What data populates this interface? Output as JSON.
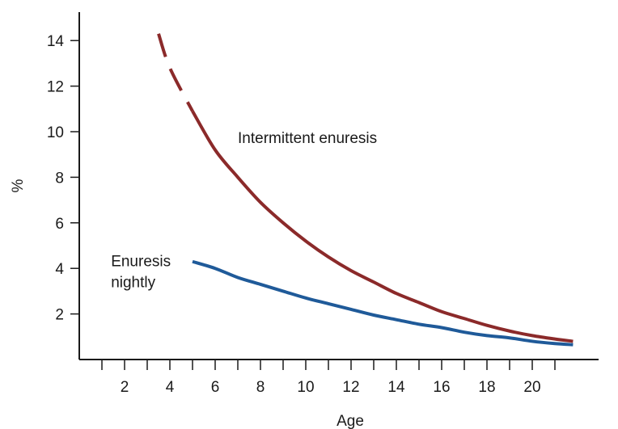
{
  "chart_data": {
    "type": "line",
    "xlabel": "Age",
    "ylabel": "%",
    "xlim": [
      0,
      22
    ],
    "ylim": [
      0,
      15
    ],
    "xticks_minor": [
      1,
      2,
      3,
      4,
      5,
      6,
      7,
      8,
      9,
      10,
      11,
      12,
      13,
      14,
      15,
      16,
      17,
      18,
      19,
      20,
      21
    ],
    "xtick_labels": [
      2,
      4,
      6,
      8,
      10,
      12,
      14,
      16,
      18,
      20
    ],
    "ytick_labels": [
      2,
      4,
      6,
      8,
      10,
      12,
      14
    ],
    "grid": false,
    "series": [
      {
        "name": "Intermittent enuresis",
        "color": "#8b2a2a",
        "dashed_segment_x": [
          3.5,
          5.0
        ],
        "x": [
          3.5,
          4.0,
          5.0,
          6.0,
          7.0,
          8.0,
          9.0,
          10.0,
          11.0,
          12.0,
          13.0,
          14.0,
          15.0,
          16.0,
          17.0,
          18.0,
          19.0,
          20.0,
          21.0,
          21.8
        ],
        "y": [
          14.3,
          12.8,
          10.9,
          9.2,
          8.0,
          6.9,
          6.0,
          5.2,
          4.5,
          3.9,
          3.4,
          2.9,
          2.5,
          2.1,
          1.8,
          1.5,
          1.25,
          1.05,
          0.9,
          0.8
        ]
      },
      {
        "name": "Enuresis nightly",
        "color": "#1f5a99",
        "x": [
          5.0,
          6.0,
          7.0,
          8.0,
          9.0,
          10.0,
          11.0,
          12.0,
          13.0,
          14.0,
          15.0,
          16.0,
          17.0,
          18.0,
          19.0,
          20.0,
          21.0,
          21.8
        ],
        "y": [
          4.3,
          4.0,
          3.6,
          3.3,
          3.0,
          2.7,
          2.45,
          2.2,
          1.95,
          1.75,
          1.55,
          1.4,
          1.2,
          1.05,
          0.95,
          0.8,
          0.7,
          0.65
        ]
      }
    ],
    "annotations": [
      {
        "text": "Intermittent enuresis",
        "x": 7.0,
        "y": 9.5
      },
      {
        "lines": [
          "Enuresis",
          "nightly"
        ],
        "x": 1.4,
        "y": 4.1
      }
    ]
  }
}
